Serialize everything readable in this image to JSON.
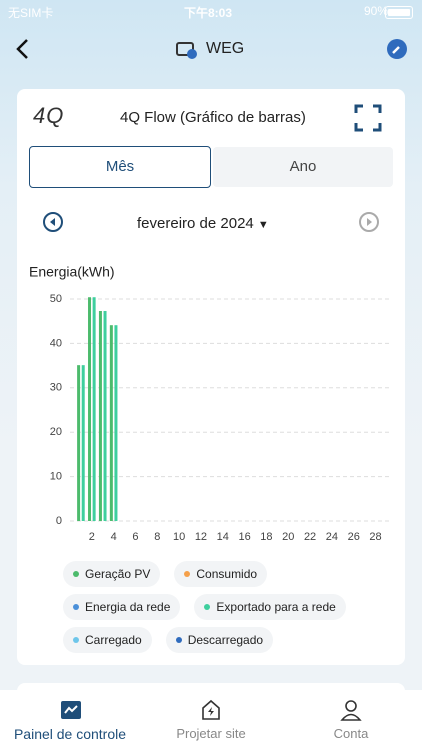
{
  "status_bar": {
    "carrier": "无SIM卡",
    "time": "下午8:03",
    "battery": "90%"
  },
  "header": {
    "title": "WEG"
  },
  "card": {
    "logo": "4Q",
    "title": "4Q Flow (Gráfico de barras)",
    "tabs": [
      "Mês",
      "Ano"
    ],
    "period": "fevereiro de 2024"
  },
  "chart_data": {
    "type": "bar",
    "y_label": "Energia(kWh)",
    "x": [
      1,
      2,
      3,
      4
    ],
    "series": [
      {
        "name": "Geração PV",
        "color": "#4cbb6c",
        "values": [
          35.1,
          50.4,
          47.3,
          44.1
        ]
      },
      {
        "name": "Consumido",
        "color": "#f5a04a",
        "values": [
          null,
          null,
          null,
          null
        ]
      },
      {
        "name": "Energia da rede",
        "color": "#4a90d9",
        "values": [
          null,
          null,
          null,
          null
        ]
      },
      {
        "name": "Exportado para a rede",
        "color": "#3ecf9e",
        "values": [
          35.1,
          50.4,
          47.3,
          44.1
        ]
      },
      {
        "name": "Carregado",
        "color": "#6ec6ea",
        "values": [
          null,
          null,
          null,
          null
        ]
      },
      {
        "name": "Descarregado",
        "color": "#2f6bbd",
        "values": [
          null,
          null,
          null,
          null
        ]
      }
    ],
    "xlim": [
      0,
      29.6
    ],
    "xticks": [
      2,
      4,
      6,
      8,
      10,
      12,
      14,
      16,
      18,
      20,
      22,
      24,
      26,
      28
    ],
    "ylim": [
      0,
      50
    ],
    "yticks": [
      0,
      10,
      20,
      30,
      40,
      50
    ],
    "grid": true
  },
  "bottom_nav": [
    "Painel de controle",
    "Projetar site",
    "Conta"
  ]
}
